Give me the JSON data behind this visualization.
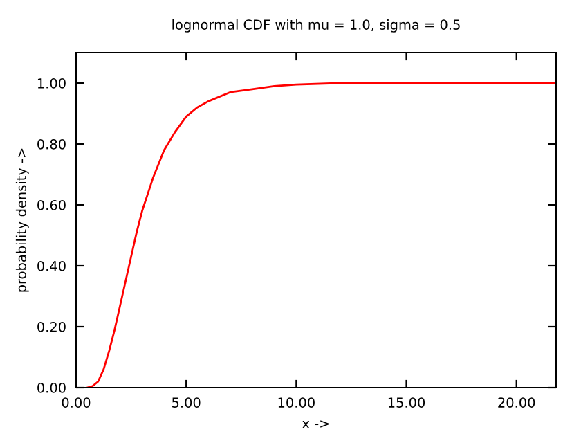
{
  "chart_data": {
    "type": "line",
    "title": "lognormal CDF with mu = 1.0, sigma = 0.5",
    "xlabel": "x ->",
    "ylabel": "probability density ->",
    "x": [
      0.5,
      0.75,
      1.0,
      1.25,
      1.5,
      1.75,
      2.0,
      2.25,
      2.5,
      2.75,
      3.0,
      3.5,
      4.0,
      4.5,
      5.0,
      5.5,
      6.0,
      7.0,
      8.0,
      9.0,
      10.0,
      12.0,
      15.0,
      21.8
    ],
    "series": [
      {
        "color": "#ff0000",
        "values": [
          0.0,
          0.005,
          0.02,
          0.06,
          0.12,
          0.19,
          0.27,
          0.35,
          0.43,
          0.51,
          0.58,
          0.69,
          0.78,
          0.84,
          0.89,
          0.92,
          0.94,
          0.97,
          0.98,
          0.99,
          0.995,
          1.0,
          1.0,
          1.0
        ]
      }
    ],
    "xlim": [
      0,
      21.8
    ],
    "ylim": [
      0,
      1.1
    ],
    "xticks": [
      {
        "value": 0,
        "label": "0.00"
      },
      {
        "value": 5,
        "label": "5.00"
      },
      {
        "value": 10,
        "label": "10.00"
      },
      {
        "value": 15,
        "label": "15.00"
      },
      {
        "value": 20,
        "label": "20.00"
      }
    ],
    "yticks": [
      {
        "value": 0,
        "label": "0.00"
      },
      {
        "value": 0.2,
        "label": "0.20"
      },
      {
        "value": 0.4,
        "label": "0.40"
      },
      {
        "value": 0.6,
        "label": "0.60"
      },
      {
        "value": 0.8,
        "label": "0.80"
      },
      {
        "value": 1.0,
        "label": "1.00"
      }
    ],
    "marker": "none",
    "line_style": "solid"
  }
}
